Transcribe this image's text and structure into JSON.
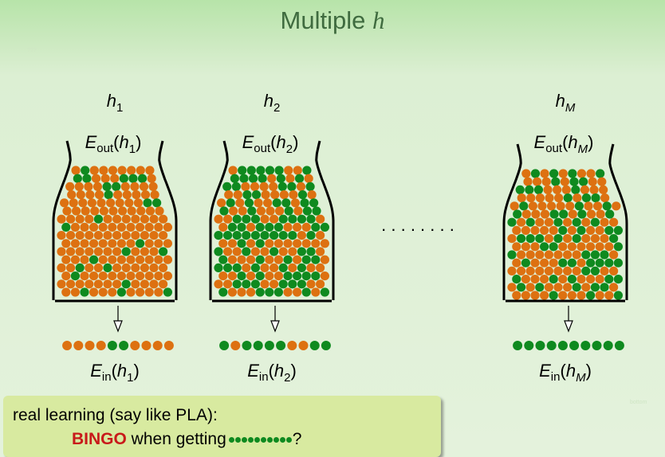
{
  "title": {
    "text": "Multiple",
    "var": "h"
  },
  "faint_left": "???",
  "faint_right": "bottom",
  "colors": {
    "orange": "#dd7111",
    "green": "#0f8a1f",
    "bingo": "#c81a1a"
  },
  "hypotheses": [
    {
      "h_base": "h",
      "h_sub": "1",
      "eout_text": "E",
      "eout_sub": "out",
      "eout_arg_sub": "1",
      "ein_text": "E",
      "ein_sub": "in",
      "ein_arg_sub": "1",
      "sample": [
        "o",
        "o",
        "o",
        "o",
        "g",
        "g",
        "o",
        "o",
        "o",
        "o"
      ]
    },
    {
      "h_base": "h",
      "h_sub": "2",
      "eout_text": "E",
      "eout_sub": "out",
      "eout_arg_sub": "2",
      "ein_text": "E",
      "ein_sub": "in",
      "ein_arg_sub": "2",
      "sample": [
        "g",
        "o",
        "g",
        "g",
        "g",
        "g",
        "o",
        "o",
        "g",
        "g"
      ]
    },
    {
      "h_base": "h",
      "h_sub": "M",
      "eout_text": "E",
      "eout_sub": "out",
      "eout_arg_sub": "M",
      "ein_text": "E",
      "ein_sub": "in",
      "ein_arg_sub": "M",
      "sample": [
        "g",
        "g",
        "g",
        "g",
        "g",
        "g",
        "g",
        "g",
        "g",
        "g"
      ]
    }
  ],
  "ellipsis": ". . . . . . . .",
  "note": {
    "line1": "real learning (say like PLA):",
    "bingo": "BINGO",
    "line2_mid": " when getting",
    "line2_end": "?"
  }
}
